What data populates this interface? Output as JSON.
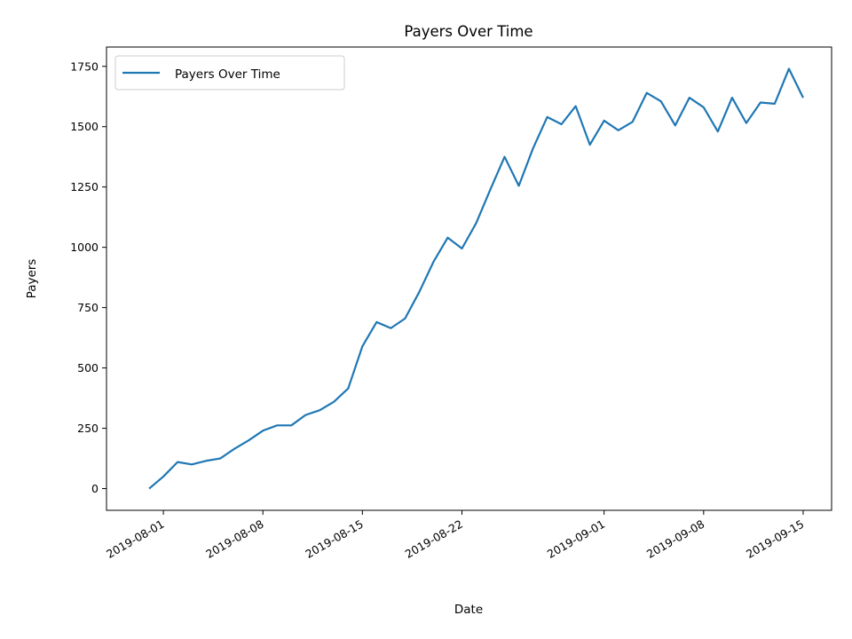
{
  "chart_data": {
    "type": "line",
    "title": "Payers Over Time",
    "xlabel": "Date",
    "ylabel": "Payers",
    "ylim": [
      -90,
      1830
    ],
    "xlim": [
      "2019-07-28",
      "2019-09-17"
    ],
    "x_ticks": [
      "2019-08-01",
      "2019-08-08",
      "2019-08-15",
      "2019-08-22",
      "2019-09-01",
      "2019-09-08",
      "2019-09-15"
    ],
    "y_ticks": [
      0,
      250,
      500,
      750,
      1000,
      1250,
      1500,
      1750
    ],
    "grid": false,
    "legend": "top-left",
    "series": [
      {
        "name": "Payers Over Time",
        "color": "#1f77b4",
        "x": [
          "2019-07-31",
          "2019-08-01",
          "2019-08-02",
          "2019-08-03",
          "2019-08-04",
          "2019-08-05",
          "2019-08-06",
          "2019-08-07",
          "2019-08-08",
          "2019-08-09",
          "2019-08-10",
          "2019-08-11",
          "2019-08-12",
          "2019-08-13",
          "2019-08-14",
          "2019-08-15",
          "2019-08-16",
          "2019-08-17",
          "2019-08-18",
          "2019-08-19",
          "2019-08-20",
          "2019-08-21",
          "2019-08-22",
          "2019-08-23",
          "2019-08-24",
          "2019-08-25",
          "2019-08-26",
          "2019-08-27",
          "2019-08-28",
          "2019-08-29",
          "2019-08-30",
          "2019-08-31",
          "2019-09-01",
          "2019-09-02",
          "2019-09-03",
          "2019-09-04",
          "2019-09-05",
          "2019-09-06",
          "2019-09-07",
          "2019-09-08",
          "2019-09-09",
          "2019-09-10",
          "2019-09-11",
          "2019-09-12",
          "2019-09-13",
          "2019-09-14",
          "2019-09-15"
        ],
        "values": [
          0,
          50,
          110,
          100,
          115,
          125,
          165,
          200,
          240,
          262,
          262,
          305,
          325,
          360,
          415,
          590,
          690,
          665,
          705,
          815,
          940,
          1040,
          995,
          1100,
          1240,
          1375,
          1255,
          1410,
          1540,
          1510,
          1585,
          1425,
          1525,
          1485,
          1520,
          1640,
          1605,
          1505,
          1620,
          1580,
          1480,
          1620,
          1515,
          1600,
          1595,
          1740,
          1620
        ]
      }
    ]
  }
}
